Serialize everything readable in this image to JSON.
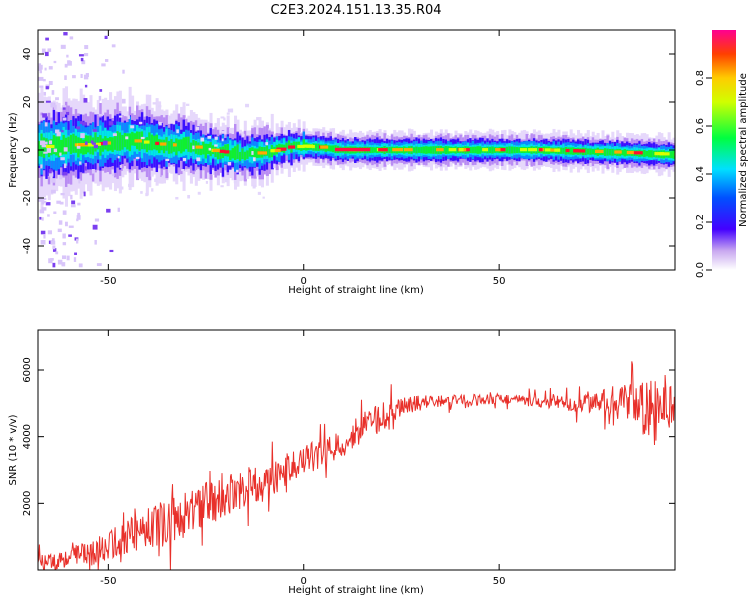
{
  "title": "C2E3.2024.151.13.35.R04",
  "chart_data": [
    {
      "type": "heatmap",
      "name": "spectrogram",
      "xlabel": "Height of straight line (km)",
      "ylabel": "Frequency (Hz)",
      "xlim": [
        -68,
        95
      ],
      "ylim": [
        -50,
        50
      ],
      "xticks": [
        -50,
        0,
        50
      ],
      "yticks": [
        -40,
        -20,
        0,
        20,
        40
      ],
      "ridge": [
        [
          -68,
          1
        ],
        [
          -62,
          2
        ],
        [
          -55,
          2
        ],
        [
          -50,
          3
        ],
        [
          -45,
          4
        ],
        [
          -40,
          3
        ],
        [
          -35,
          2
        ],
        [
          -30,
          2
        ],
        [
          -25,
          0
        ],
        [
          -20,
          -1
        ],
        [
          -15,
          -2
        ],
        [
          -10,
          -1
        ],
        [
          -5,
          1
        ],
        [
          0,
          1.5
        ],
        [
          5,
          1
        ],
        [
          10,
          0
        ],
        [
          20,
          0
        ],
        [
          40,
          0
        ],
        [
          60,
          0
        ],
        [
          80,
          -1
        ],
        [
          95,
          -2
        ]
      ],
      "colorbar": {
        "label": "Normalized spectral amplitude",
        "ticks": [
          "0.0",
          "0.2",
          "0.4",
          "0.6",
          "0.8"
        ],
        "range": [
          0,
          1
        ]
      }
    },
    {
      "type": "line",
      "name": "snr",
      "xlabel": "Height of straight line (km)",
      "ylabel": "SNR (10 * v/v)",
      "xlim": [
        -68,
        95
      ],
      "ylim": [
        0,
        7200
      ],
      "xticks": [
        -50,
        0,
        50
      ],
      "yticks": [
        2000,
        4000,
        6000
      ],
      "color": "#e8302a",
      "trend": [
        [
          -68,
          200
        ],
        [
          -60,
          400
        ],
        [
          -55,
          500
        ],
        [
          -50,
          700
        ],
        [
          -45,
          1000
        ],
        [
          -40,
          1300
        ],
        [
          -35,
          1400
        ],
        [
          -30,
          1700
        ],
        [
          -25,
          2000
        ],
        [
          -20,
          2200
        ],
        [
          -15,
          2500
        ],
        [
          -10,
          2600
        ],
        [
          -5,
          2900
        ],
        [
          0,
          3300
        ],
        [
          5,
          3500
        ],
        [
          10,
          3800
        ],
        [
          15,
          4300
        ],
        [
          20,
          4600
        ],
        [
          25,
          4850
        ],
        [
          30,
          5050
        ],
        [
          35,
          5050
        ],
        [
          40,
          5100
        ],
        [
          45,
          5100
        ],
        [
          50,
          5150
        ],
        [
          55,
          5100
        ],
        [
          60,
          5050
        ],
        [
          65,
          5050
        ],
        [
          70,
          4950
        ],
        [
          75,
          5050
        ],
        [
          80,
          5050
        ],
        [
          85,
          4900
        ],
        [
          90,
          4800
        ],
        [
          95,
          5000
        ]
      ],
      "noise_amplitude": [
        [
          -68,
          250
        ],
        [
          -50,
          450
        ],
        [
          -35,
          700
        ],
        [
          -20,
          650
        ],
        [
          0,
          450
        ],
        [
          20,
          450
        ],
        [
          30,
          200
        ],
        [
          50,
          150
        ],
        [
          65,
          200
        ],
        [
          75,
          300
        ],
        [
          85,
          700
        ],
        [
          90,
          1000
        ],
        [
          95,
          600
        ]
      ]
    }
  ]
}
